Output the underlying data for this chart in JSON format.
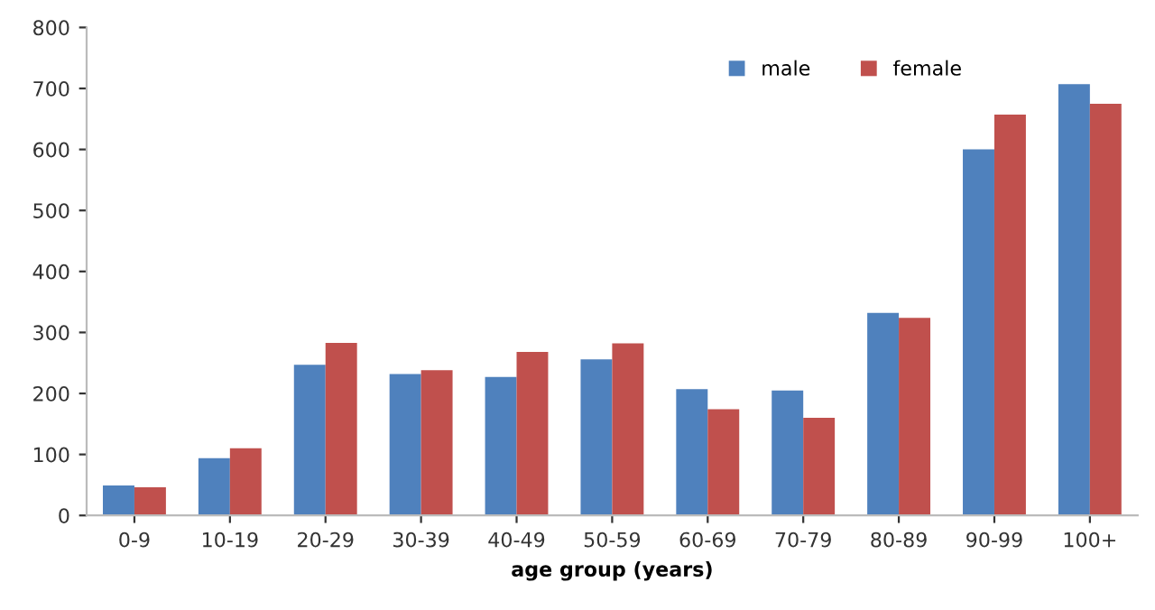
{
  "chart_data": {
    "type": "bar",
    "xlabel": "age group (years)",
    "categories": [
      "0-9",
      "10-19",
      "20-29",
      "30-39",
      "40-49",
      "50-59",
      "60-69",
      "70-79",
      "80-89",
      "90-99",
      "100+"
    ],
    "series": [
      {
        "name": "male",
        "color": "#4f81bd",
        "values": [
          49,
          94,
          247,
          232,
          227,
          256,
          207,
          205,
          332,
          600,
          707
        ]
      },
      {
        "name": "female",
        "color": "#c0504d",
        "values": [
          46,
          110,
          283,
          238,
          268,
          282,
          174,
          160,
          324,
          657,
          675
        ]
      }
    ],
    "ylim": [
      0,
      800
    ],
    "yticks": [
      0,
      100,
      200,
      300,
      400,
      500,
      600,
      700,
      800
    ],
    "grid": false,
    "legend": "top right"
  }
}
